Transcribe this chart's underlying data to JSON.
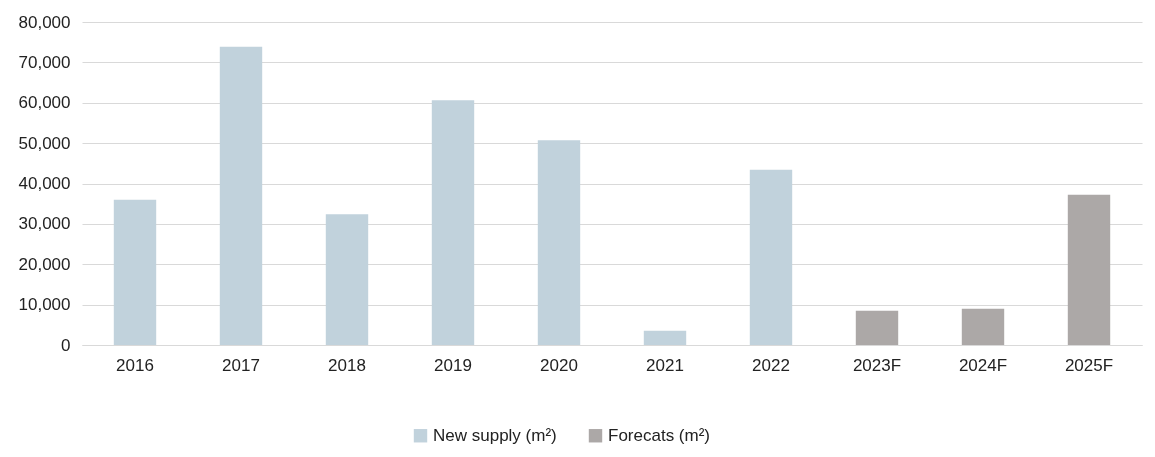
{
  "chart_data": {
    "type": "bar",
    "categories": [
      "2016",
      "2017",
      "2018",
      "2019",
      "2020",
      "2021",
      "2022",
      "2023F",
      "2024F",
      "2025F"
    ],
    "series": [
      {
        "name": "New supply (m²)",
        "color": "#c1d2dc",
        "values": [
          36000,
          73900,
          32400,
          60600,
          50700,
          3500,
          43400,
          null,
          null,
          null
        ]
      },
      {
        "name": "Forecats (m²)",
        "color": "#aca8a7",
        "values": [
          null,
          null,
          null,
          null,
          null,
          null,
          null,
          8500,
          9000,
          37200
        ]
      }
    ],
    "ylim": [
      0,
      80000
    ],
    "yticks": [
      0,
      {
        "value": 10000,
        "label": "10,000"
      },
      {
        "value": 20000,
        "label": "20,000"
      },
      {
        "value": 30000,
        "label": "30,000"
      },
      {
        "value": 40000,
        "label": "40,000"
      },
      {
        "value": 50000,
        "label": "50,000"
      },
      {
        "value": 60000,
        "label": "60,000"
      },
      {
        "value": 70000,
        "label": "70,000"
      },
      {
        "value": 80000,
        "label": "80,000"
      }
    ],
    "grid": "y",
    "legend": "bottom"
  }
}
